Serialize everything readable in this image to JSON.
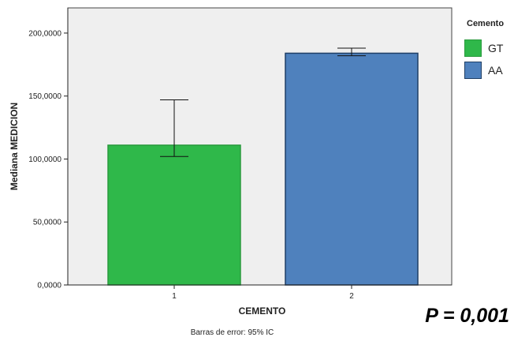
{
  "chart_data": {
    "type": "bar",
    "categories": [
      "1",
      "2"
    ],
    "series": [
      {
        "name": "GT",
        "category": "1",
        "value": 111000,
        "ci_low": 102000,
        "ci_high": 147000,
        "color": "#2fb84a",
        "stroke": "#2a9a3e"
      },
      {
        "name": "AA",
        "category": "2",
        "value": 184000,
        "ci_low": 182000,
        "ci_high": 188000,
        "color": "#4f81bd",
        "stroke": "#1f3f66"
      }
    ],
    "xlabel": "CEMENTO",
    "ylabel": "Mediana MEDICION",
    "ylim": [
      0,
      220000
    ],
    "yticks": [
      0,
      50000,
      100000,
      150000,
      200000
    ],
    "ytick_labels": [
      "0,0000",
      "50,0000",
      "100,0000",
      "150,0000",
      "200,0000"
    ],
    "grid": false,
    "legend": {
      "title": "Cemento",
      "position": "right",
      "items": [
        "GT",
        "AA"
      ]
    },
    "footnote": "Barras de error: 95% IC",
    "annotation": "P = 0,001",
    "plot_background": "#efefef"
  }
}
